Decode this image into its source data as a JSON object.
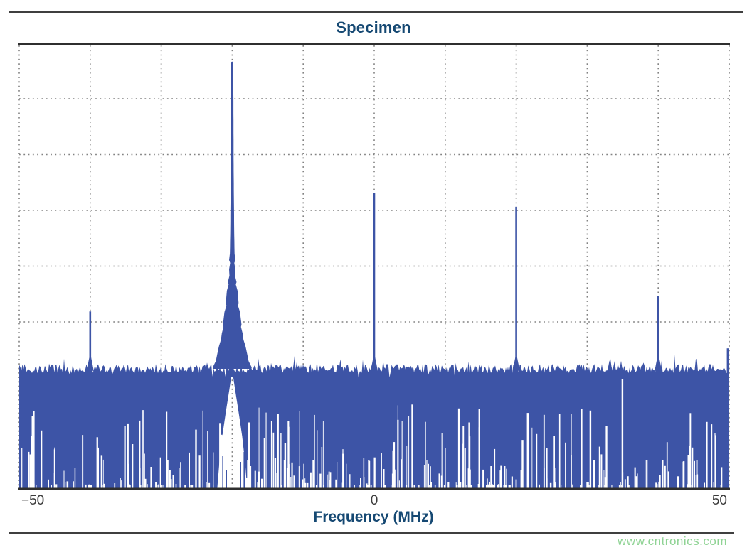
{
  "page": {
    "watermark": "www.cntronics.com"
  },
  "colors": {
    "trace_blue": "#3D54A6",
    "title_blue": "#164973",
    "tick_gray": "#3b3b3b",
    "grid_gray": "#828282",
    "axis_dark": "#2f2f2f",
    "rule_gray": "#3f3f3f",
    "watermark_green": "#8fd394",
    "background": "#ffffff"
  },
  "chart_data": {
    "type": "line",
    "title": "Specimen",
    "xlabel": "Frequency (MHz)",
    "ylabel": "",
    "xlim": [
      -50,
      50
    ],
    "xticks": [
      -50,
      0,
      50
    ],
    "xtick_labels": [
      "−50",
      "0",
      "50"
    ],
    "x_gridline_step_mhz": 10,
    "y_gridline_count": 7,
    "grid_style": "dotted",
    "legend": "none",
    "y_axis_note": "no y tick labels shown; levels given as normalized fraction of plot height (0 = bottom, 1 = top)",
    "noise_floor_level": 0.27,
    "peaks": [
      {
        "freq_mhz": -40,
        "level": 0.4,
        "main": false
      },
      {
        "freq_mhz": -20,
        "level": 0.958,
        "main": true,
        "note": "carrier with wide phase-noise skirt and white notch in noise floor below"
      },
      {
        "freq_mhz": 0,
        "level": 0.665,
        "main": false
      },
      {
        "freq_mhz": 20,
        "level": 0.635,
        "main": false
      },
      {
        "freq_mhz": 40,
        "level": 0.434,
        "main": false
      },
      {
        "freq_mhz": 50,
        "level": 0.317,
        "main": false,
        "clipped_at_right_edge": true
      }
    ]
  }
}
